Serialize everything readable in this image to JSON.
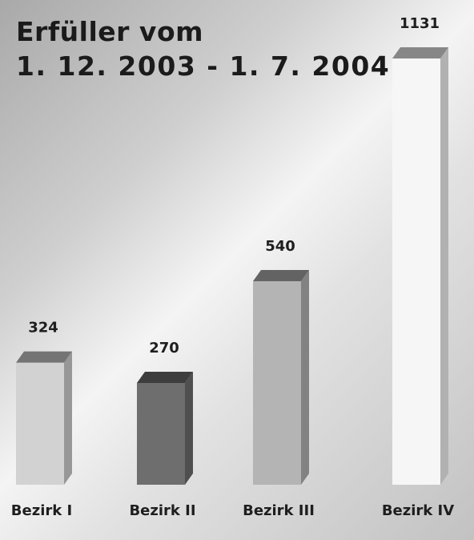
{
  "title_line1": "Erfüller vom",
  "title_line2": "1. 12. 2003 - 1. 7. 2004",
  "chart_data": {
    "type": "bar",
    "title": "Erfüller vom 1. 12. 2003 - 1. 7. 2004",
    "categories": [
      "Bezirk I",
      "Bezirk II",
      "Bezirk III",
      "Bezirk IV"
    ],
    "values": [
      324,
      270,
      540,
      1131
    ],
    "data_labels": [
      "324",
      "270",
      "540",
      "1131"
    ],
    "bar_colors": [
      "#d2d2d2",
      "#6e6e6e",
      "#b4b4b4",
      "#f6f6f6"
    ],
    "ylim": [
      0,
      1131
    ],
    "grid": false,
    "style": "3d-columns"
  }
}
